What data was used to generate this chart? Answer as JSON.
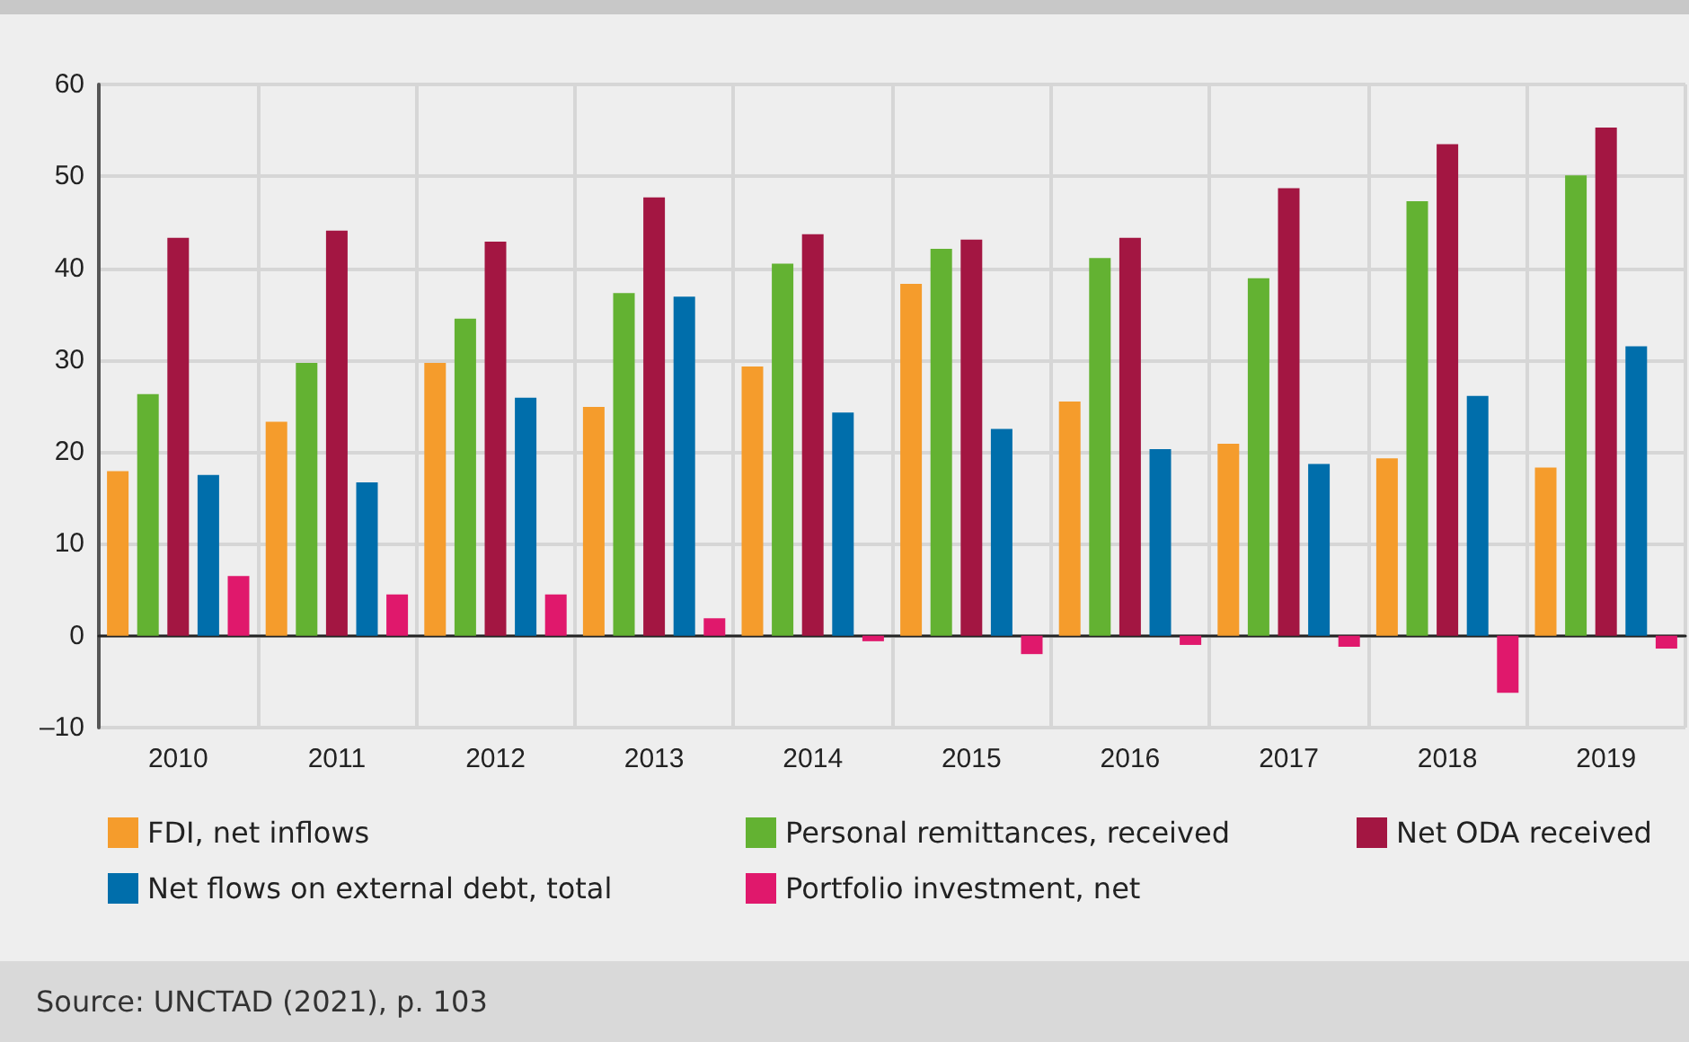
{
  "chart_data": {
    "type": "bar",
    "categories": [
      "2010",
      "2011",
      "2012",
      "2013",
      "2014",
      "2015",
      "2016",
      "2017",
      "2018",
      "2019"
    ],
    "series": [
      {
        "name": "FDI, net inflows",
        "color": "#f59c2c",
        "values": [
          17.9,
          23.3,
          29.7,
          24.9,
          29.3,
          38.3,
          25.5,
          20.9,
          19.3,
          18.3
        ]
      },
      {
        "name": "Personal remittances, received",
        "color": "#63b232",
        "values": [
          26.3,
          29.7,
          34.5,
          37.3,
          40.5,
          42.1,
          41.1,
          38.9,
          47.3,
          50.1
        ]
      },
      {
        "name": "Net ODA received",
        "color": "#a31642",
        "values": [
          43.3,
          44.1,
          42.9,
          47.7,
          43.7,
          43.1,
          43.3,
          48.7,
          53.5,
          55.3
        ]
      },
      {
        "name": "Net flows on external debt, total",
        "color": "#006eab",
        "values": [
          17.5,
          16.7,
          25.9,
          36.9,
          24.3,
          22.5,
          20.3,
          18.7,
          26.1,
          31.5
        ]
      },
      {
        "name": "Portfolio investment, net",
        "color": "#e0186c",
        "values": [
          6.5,
          4.5,
          4.5,
          1.9,
          -0.6,
          -2,
          -1,
          -1.2,
          -6.2,
          -1.4
        ]
      }
    ],
    "ylim": [
      -10,
      60
    ],
    "yticks": [
      {
        "value": -10,
        "label": "–10"
      },
      0,
      10,
      20,
      30,
      40,
      50,
      60
    ],
    "grid": true,
    "legend": "bottom",
    "annotations": [
      "Source: UNCTAD (2021), p. 103"
    ]
  }
}
